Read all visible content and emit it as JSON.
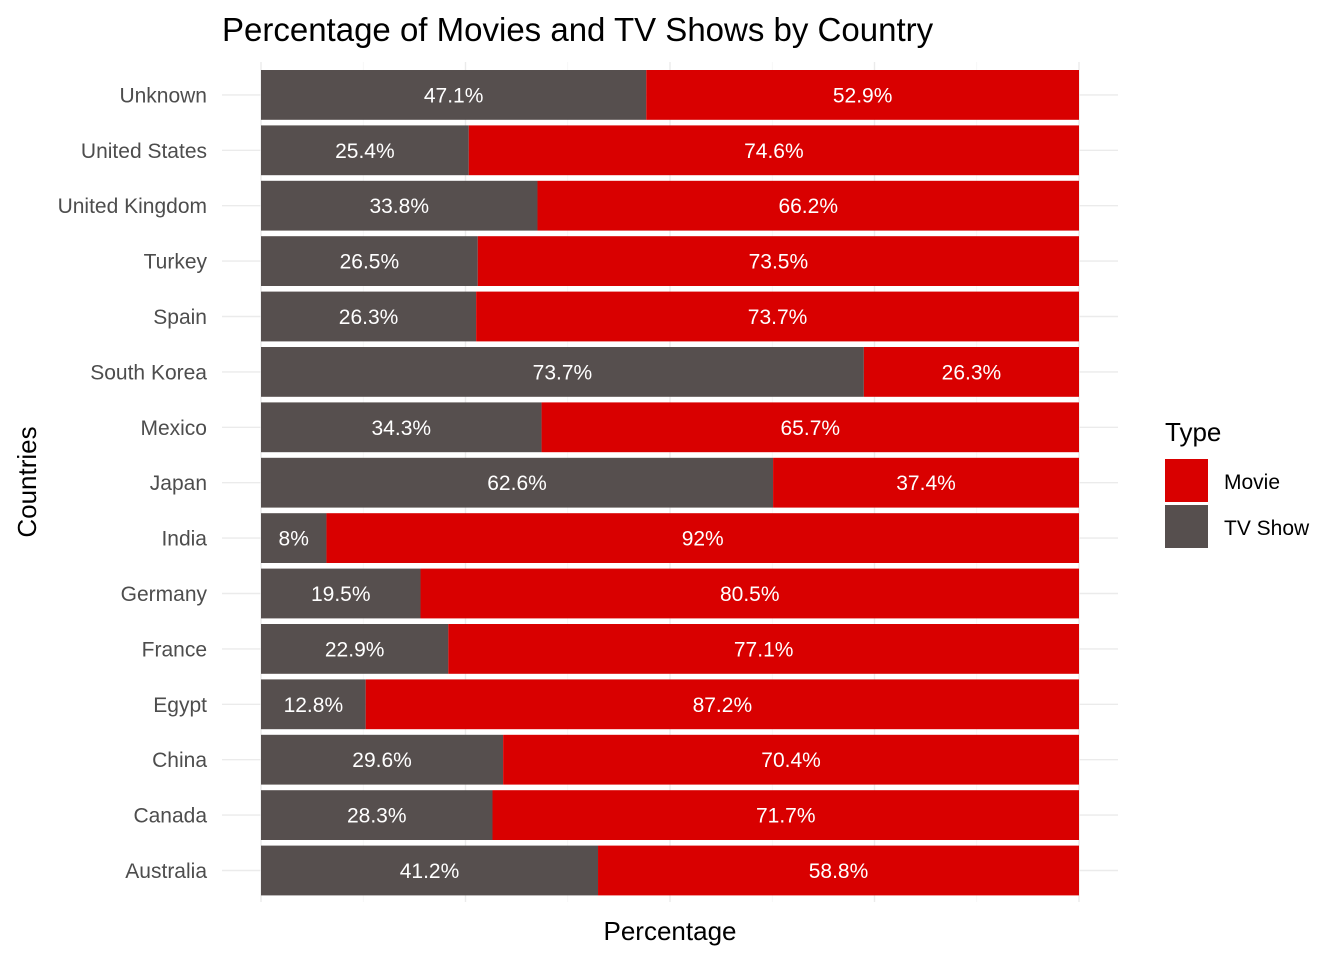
{
  "chart_data": {
    "type": "bar",
    "orientation": "horizontal",
    "stacked": true,
    "title": "Percentage of Movies and TV Shows by Country",
    "xlabel": "Percentage",
    "ylabel": "Countries",
    "xlim": [
      0,
      100
    ],
    "grid": true,
    "legend_position": "right",
    "legend_title": "Type",
    "categories": [
      "Australia",
      "Canada",
      "China",
      "Egypt",
      "France",
      "Germany",
      "India",
      "Japan",
      "Mexico",
      "South Korea",
      "Spain",
      "Turkey",
      "United Kingdom",
      "United States",
      "Unknown"
    ],
    "series": [
      {
        "name": "TV Show",
        "color": "#564f4e",
        "values": [
          41.2,
          28.3,
          29.6,
          12.8,
          22.9,
          19.5,
          8,
          62.6,
          34.3,
          73.7,
          26.3,
          26.5,
          33.8,
          25.4,
          47.1
        ],
        "labels": [
          "41.2%",
          "28.3%",
          "29.6%",
          "12.8%",
          "22.9%",
          "19.5%",
          "8%",
          "62.6%",
          "34.3%",
          "73.7%",
          "26.3%",
          "26.5%",
          "33.8%",
          "25.4%",
          "47.1%"
        ]
      },
      {
        "name": "Movie",
        "color": "#d90000",
        "values": [
          58.8,
          71.7,
          70.4,
          87.2,
          77.1,
          80.5,
          92,
          37.4,
          65.7,
          26.3,
          73.7,
          73.5,
          66.2,
          74.6,
          52.9
        ],
        "labels": [
          "58.8%",
          "71.7%",
          "70.4%",
          "87.2%",
          "77.1%",
          "80.5%",
          "92%",
          "37.4%",
          "65.7%",
          "26.3%",
          "73.7%",
          "73.5%",
          "66.2%",
          "74.6%",
          "52.9%"
        ]
      }
    ],
    "legend_order": [
      "Movie",
      "TV Show"
    ]
  }
}
